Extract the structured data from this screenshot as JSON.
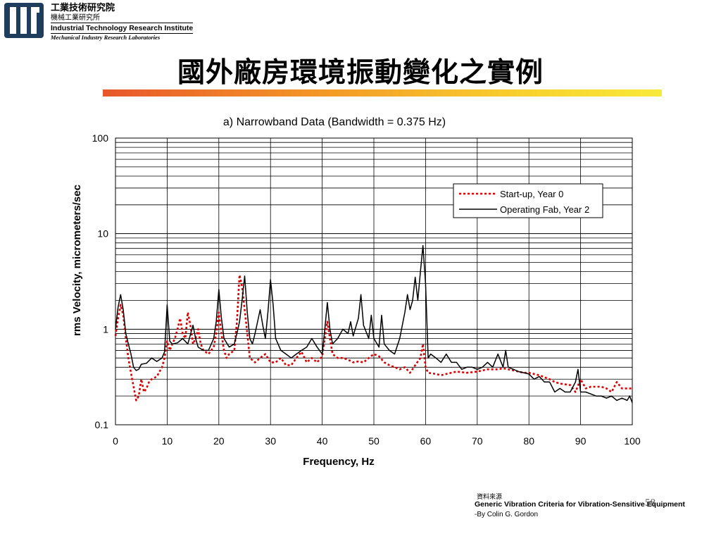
{
  "logo": {
    "zh_name": "工業技術研究院",
    "zh_lab": "機械工業研究所",
    "en_name": "Industrial Technology Research Institute",
    "en_lab": "Mechanical Industry Research Laboratories"
  },
  "slide": {
    "title": "國外廠房環境振動變化之實例",
    "page_number": "58"
  },
  "source": {
    "label": "資料來源",
    "title": "Generic Vibration Criteria for Vibration-Sensitive Equipment",
    "author": "-By Colin G. Gordon"
  },
  "colors": {
    "startup": "#dd0000",
    "operating": "#000000",
    "logo": "#1f3d5c"
  },
  "chart_data": {
    "type": "line",
    "title": "a)  Narrowband Data (Bandwidth = 0.375 Hz)",
    "xlabel": "Frequency, Hz",
    "ylabel": "rms Velocity, micrometers/sec",
    "xlim": [
      0,
      100
    ],
    "ylim": [
      0.1,
      100
    ],
    "yscale": "log",
    "grid": true,
    "legend_position": "upper-right",
    "x_ticks": [
      "0",
      "10",
      "20",
      "30",
      "40",
      "50",
      "60",
      "70",
      "80",
      "90",
      "100"
    ],
    "y_ticks": [
      "100",
      "10",
      "1",
      "0.1"
    ],
    "series": [
      {
        "name": "Start-up, Year 0",
        "style": "dotted",
        "points": [
          [
            0,
            0.85
          ],
          [
            0.5,
            1.3
          ],
          [
            1,
            1.8
          ],
          [
            1.5,
            1.4
          ],
          [
            2,
            0.8
          ],
          [
            2.5,
            0.5
          ],
          [
            3,
            0.35
          ],
          [
            3.5,
            0.25
          ],
          [
            4,
            0.18
          ],
          [
            4.5,
            0.2
          ],
          [
            5,
            0.3
          ],
          [
            5.5,
            0.22
          ],
          [
            6,
            0.24
          ],
          [
            6.5,
            0.28
          ],
          [
            7,
            0.3
          ],
          [
            8,
            0.32
          ],
          [
            9,
            0.4
          ],
          [
            9.5,
            0.5
          ],
          [
            10,
            0.75
          ],
          [
            10.5,
            0.6
          ],
          [
            11,
            0.7
          ],
          [
            11.5,
            0.8
          ],
          [
            12,
            1.0
          ],
          [
            12.5,
            1.3
          ],
          [
            13,
            0.9
          ],
          [
            13.5,
            0.8
          ],
          [
            14,
            1.5
          ],
          [
            14.5,
            1.1
          ],
          [
            15,
            0.7
          ],
          [
            15.5,
            0.8
          ],
          [
            16,
            1.0
          ],
          [
            16.5,
            0.7
          ],
          [
            17,
            0.6
          ],
          [
            18,
            0.55
          ],
          [
            19,
            0.65
          ],
          [
            19.5,
            0.9
          ],
          [
            20,
            1.5
          ],
          [
            20.5,
            0.9
          ],
          [
            21,
            0.6
          ],
          [
            21.5,
            0.5
          ],
          [
            22,
            0.55
          ],
          [
            23,
            0.6
          ],
          [
            23.5,
            1.2
          ],
          [
            24,
            3.7
          ],
          [
            24.5,
            2.8
          ],
          [
            25,
            1.6
          ],
          [
            25.5,
            0.9
          ],
          [
            26,
            0.5
          ],
          [
            27,
            0.45
          ],
          [
            28,
            0.5
          ],
          [
            29,
            0.55
          ],
          [
            30,
            0.45
          ],
          [
            31,
            0.45
          ],
          [
            32,
            0.5
          ],
          [
            33,
            0.42
          ],
          [
            34,
            0.42
          ],
          [
            35,
            0.5
          ],
          [
            36,
            0.58
          ],
          [
            37,
            0.45
          ],
          [
            38,
            0.5
          ],
          [
            39,
            0.45
          ],
          [
            40,
            0.52
          ],
          [
            40.5,
            0.8
          ],
          [
            41,
            1.2
          ],
          [
            41.5,
            0.8
          ],
          [
            42,
            0.55
          ],
          [
            43,
            0.5
          ],
          [
            44,
            0.5
          ],
          [
            45,
            0.48
          ],
          [
            46,
            0.45
          ],
          [
            47,
            0.46
          ],
          [
            48,
            0.45
          ],
          [
            49,
            0.5
          ],
          [
            50,
            0.55
          ],
          [
            51,
            0.52
          ],
          [
            52,
            0.45
          ],
          [
            53,
            0.42
          ],
          [
            54,
            0.4
          ],
          [
            55,
            0.38
          ],
          [
            56,
            0.4
          ],
          [
            57,
            0.35
          ],
          [
            58,
            0.42
          ],
          [
            59,
            0.5
          ],
          [
            59.5,
            0.7
          ],
          [
            60,
            0.4
          ],
          [
            60.5,
            0.35
          ],
          [
            62,
            0.34
          ],
          [
            63,
            0.33
          ],
          [
            64,
            0.34
          ],
          [
            66,
            0.36
          ],
          [
            68,
            0.35
          ],
          [
            70,
            0.36
          ],
          [
            72,
            0.38
          ],
          [
            74,
            0.38
          ],
          [
            75,
            0.39
          ],
          [
            77,
            0.37
          ],
          [
            79,
            0.35
          ],
          [
            80,
            0.35
          ],
          [
            82,
            0.33
          ],
          [
            84,
            0.3
          ],
          [
            85,
            0.28
          ],
          [
            86,
            0.27
          ],
          [
            88,
            0.26
          ],
          [
            89,
            0.22
          ],
          [
            90,
            0.3
          ],
          [
            91,
            0.24
          ],
          [
            92,
            0.25
          ],
          [
            94,
            0.25
          ],
          [
            95,
            0.24
          ],
          [
            96,
            0.22
          ],
          [
            97,
            0.28
          ],
          [
            98,
            0.24
          ],
          [
            100,
            0.24
          ]
        ]
      },
      {
        "name": "Operating Fab, Year 2",
        "style": "solid",
        "points": [
          [
            0,
            1.0
          ],
          [
            0.5,
            1.7
          ],
          [
            1,
            2.3
          ],
          [
            1.5,
            1.6
          ],
          [
            2,
            0.9
          ],
          [
            2.5,
            0.7
          ],
          [
            3,
            0.55
          ],
          [
            3.5,
            0.4
          ],
          [
            4,
            0.37
          ],
          [
            4.5,
            0.38
          ],
          [
            5,
            0.43
          ],
          [
            6,
            0.44
          ],
          [
            7,
            0.5
          ],
          [
            8,
            0.46
          ],
          [
            9,
            0.5
          ],
          [
            9.5,
            0.58
          ],
          [
            10,
            1.8
          ],
          [
            10.5,
            0.75
          ],
          [
            11,
            0.7
          ],
          [
            12,
            0.72
          ],
          [
            13,
            0.8
          ],
          [
            14,
            0.7
          ],
          [
            15,
            1.1
          ],
          [
            15.5,
            0.8
          ],
          [
            16,
            0.65
          ],
          [
            17,
            0.6
          ],
          [
            18,
            0.6
          ],
          [
            19,
            0.8
          ],
          [
            19.5,
            1.2
          ],
          [
            20,
            2.6
          ],
          [
            20.5,
            1.3
          ],
          [
            21,
            0.8
          ],
          [
            22,
            0.65
          ],
          [
            23,
            0.7
          ],
          [
            23.5,
            0.9
          ],
          [
            24,
            1.2
          ],
          [
            24.5,
            2.0
          ],
          [
            25,
            3.6
          ],
          [
            25.5,
            1.5
          ],
          [
            26,
            0.8
          ],
          [
            26.5,
            0.7
          ],
          [
            27,
            0.9
          ],
          [
            28,
            1.6
          ],
          [
            28.5,
            1.1
          ],
          [
            29,
            0.8
          ],
          [
            29.5,
            1.5
          ],
          [
            30,
            3.3
          ],
          [
            30.5,
            1.8
          ],
          [
            31,
            0.8
          ],
          [
            32,
            0.6
          ],
          [
            33,
            0.55
          ],
          [
            34,
            0.5
          ],
          [
            35,
            0.55
          ],
          [
            36,
            0.6
          ],
          [
            37,
            0.65
          ],
          [
            38,
            0.8
          ],
          [
            39,
            0.65
          ],
          [
            40,
            0.55
          ],
          [
            40.5,
            1.0
          ],
          [
            41,
            1.9
          ],
          [
            41.5,
            1.0
          ],
          [
            42,
            0.7
          ],
          [
            43,
            0.8
          ],
          [
            44,
            1.0
          ],
          [
            45,
            0.9
          ],
          [
            45.5,
            1.2
          ],
          [
            46,
            0.85
          ],
          [
            47,
            1.3
          ],
          [
            47.5,
            2.3
          ],
          [
            48,
            1.1
          ],
          [
            49,
            0.8
          ],
          [
            49.5,
            1.4
          ],
          [
            50,
            0.8
          ],
          [
            51,
            0.65
          ],
          [
            51.5,
            1.4
          ],
          [
            52,
            0.7
          ],
          [
            53,
            0.6
          ],
          [
            54,
            0.55
          ],
          [
            55,
            0.8
          ],
          [
            56,
            1.5
          ],
          [
            56.5,
            2.3
          ],
          [
            57,
            1.6
          ],
          [
            57.5,
            2.0
          ],
          [
            58,
            3.5
          ],
          [
            58.5,
            2.0
          ],
          [
            59,
            4.0
          ],
          [
            59.5,
            7.5
          ],
          [
            60,
            3.0
          ],
          [
            60.5,
            0.5
          ],
          [
            61,
            0.55
          ],
          [
            62,
            0.5
          ],
          [
            63,
            0.45
          ],
          [
            64,
            0.55
          ],
          [
            65,
            0.45
          ],
          [
            66,
            0.45
          ],
          [
            67,
            0.38
          ],
          [
            68,
            0.4
          ],
          [
            69,
            0.4
          ],
          [
            70,
            0.38
          ],
          [
            71,
            0.4
          ],
          [
            72,
            0.45
          ],
          [
            73,
            0.4
          ],
          [
            74,
            0.55
          ],
          [
            75,
            0.4
          ],
          [
            75.5,
            0.6
          ],
          [
            76,
            0.4
          ],
          [
            77,
            0.38
          ],
          [
            78,
            0.36
          ],
          [
            80,
            0.34
          ],
          [
            81,
            0.3
          ],
          [
            82,
            0.32
          ],
          [
            83,
            0.28
          ],
          [
            84,
            0.28
          ],
          [
            85,
            0.22
          ],
          [
            86,
            0.24
          ],
          [
            87,
            0.22
          ],
          [
            88,
            0.22
          ],
          [
            89,
            0.28
          ],
          [
            89.5,
            0.38
          ],
          [
            90,
            0.22
          ],
          [
            91,
            0.22
          ],
          [
            92,
            0.21
          ],
          [
            93,
            0.2
          ],
          [
            94,
            0.2
          ],
          [
            95,
            0.19
          ],
          [
            96,
            0.2
          ],
          [
            97,
            0.18
          ],
          [
            98,
            0.19
          ],
          [
            99,
            0.18
          ],
          [
            99.5,
            0.2
          ],
          [
            100,
            0.17
          ]
        ]
      }
    ]
  }
}
